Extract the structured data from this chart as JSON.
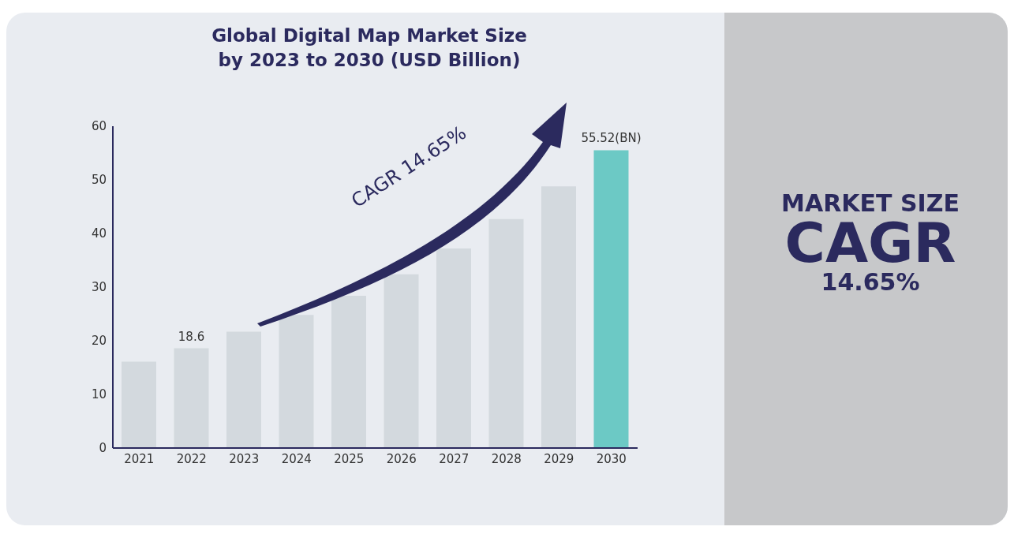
{
  "chart_data": {
    "type": "bar",
    "title": "Global Digital Map Market Size by 2023 to 2030 (USD Billion)",
    "categories": [
      "2021",
      "2022",
      "2023",
      "2024",
      "2025",
      "2026",
      "2027",
      "2028",
      "2029",
      "2030"
    ],
    "values": [
      16.1,
      18.6,
      21.7,
      24.8,
      28.4,
      32.4,
      37.2,
      42.7,
      48.8,
      55.52
    ],
    "colors": [
      "#d3d9de",
      "#d3d9de",
      "#d3d9de",
      "#d3d9de",
      "#d3d9de",
      "#d3d9de",
      "#d3d9de",
      "#d3d9de",
      "#d3d9de",
      "#6cc9c5"
    ],
    "value_labels": [
      null,
      "18.6",
      null,
      null,
      null,
      null,
      null,
      null,
      null,
      "55.52(BN)"
    ],
    "ylim": [
      0,
      60
    ],
    "yticks": [
      0,
      10,
      20,
      30,
      40,
      50,
      60
    ],
    "annotations": [
      "CAGR 14.65%",
      "MARKET SIZE",
      "CAGR",
      "14.65%"
    ]
  }
}
